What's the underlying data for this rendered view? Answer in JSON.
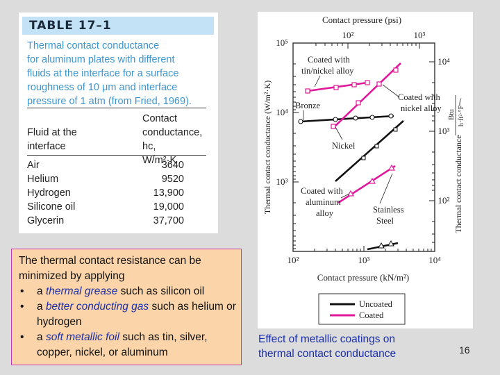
{
  "table": {
    "title": "TABLE 17–1",
    "caption_lines": [
      "Thermal contact conductance",
      "for aluminum plates with different",
      "fluids at the interface for a surface",
      "roughness of 10 μm and interface",
      "pressure of 1 atm (from Fried, 1969)."
    ],
    "col1_header": [
      "",
      "Fluid at the",
      "interface"
    ],
    "col2_header": [
      "Contact",
      "conductance, hc,",
      "W/m²·K"
    ],
    "rows": [
      {
        "fluid": "Air",
        "value": "3640"
      },
      {
        "fluid": "Helium",
        "value": "9520"
      },
      {
        "fluid": "Hydrogen",
        "value": "13,900"
      },
      {
        "fluid": "Silicone oil",
        "value": "19,000"
      },
      {
        "fluid": "Glycerin",
        "value": "37,700"
      }
    ]
  },
  "notes": {
    "intro": "The thermal contact resistance can be minimized by applying",
    "bullets": [
      {
        "pre": "a ",
        "em": "thermal grease",
        "post": " such as silicon oil"
      },
      {
        "pre": "a ",
        "em": "better conducting gas",
        "post": " such as helium or hydrogen"
      },
      {
        "pre": "a ",
        "em": "soft metallic foil",
        "post": " such as tin, silver, copper, nickel, or aluminum"
      }
    ]
  },
  "figure": {
    "caption_lines": [
      "Effect of metallic coatings on",
      "thermal contact conductance"
    ],
    "top_axis_label": "Contact pressure (psi)",
    "top_ticks": [
      "10²",
      "10³"
    ],
    "bottom_axis_label": "Contact pressure (kN/m²)",
    "bottom_ticks": [
      "10²",
      "10³",
      "10⁴"
    ],
    "left_axis_label": "Thermal contact conductance (W/m²·K)",
    "left_ticks": [
      "10⁵",
      "10⁴",
      "10³"
    ],
    "right_axis_label": "Thermal contact conductance",
    "right_unit_top": "Btu",
    "right_unit_bottom": "h·ft²·°F",
    "right_ticks": [
      "10⁴",
      "10³",
      "10²"
    ],
    "annotations": {
      "coated_tin": [
        "Coated with",
        "tin/nickel alloy"
      ],
      "bronze": "Bronze",
      "coated_nickel": [
        "Coated with",
        "nickel alloy"
      ],
      "nickel": "Nickel",
      "coated_al": [
        "Coated with",
        "aluminum",
        "alloy"
      ],
      "stainless": [
        "Stainless",
        "Steel"
      ]
    },
    "legend": {
      "uncoated": "Uncoated",
      "coated": "Coated"
    },
    "colors": {
      "uncoated": "#111111",
      "coated": "#e0199a"
    }
  },
  "page_number": "16"
}
